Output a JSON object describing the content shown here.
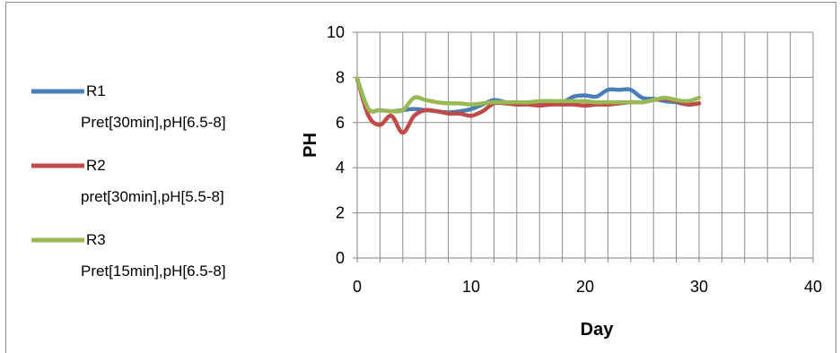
{
  "chart_data": {
    "type": "line",
    "xlabel": "Day",
    "ylabel": "PH",
    "xlim": [
      0,
      40
    ],
    "ylim": [
      0,
      10
    ],
    "xticks": [
      0,
      10,
      20,
      30,
      40
    ],
    "yticks": [
      0,
      2,
      4,
      6,
      8,
      10
    ],
    "x_minor_step": 2,
    "grid": true,
    "legend_position": "left",
    "series": [
      {
        "name": "R1 Pret[30min],pH[6.5-8]",
        "legend_lines": [
          "R1",
          "Pret[30min],pH[6.5-8]"
        ],
        "color": "#4a7ebb",
        "x": [
          0,
          1,
          2,
          3,
          4,
          5,
          6,
          7,
          8,
          9,
          10,
          11,
          12,
          13,
          14,
          15,
          16,
          17,
          18,
          19,
          20,
          21,
          22,
          23,
          24,
          25,
          26,
          27,
          28,
          29,
          30
        ],
        "y": [
          7.9,
          6.6,
          6.55,
          6.5,
          6.55,
          6.6,
          6.55,
          6.5,
          6.45,
          6.5,
          6.6,
          6.8,
          7.0,
          6.9,
          6.85,
          6.85,
          6.9,
          6.95,
          6.9,
          7.15,
          7.2,
          7.15,
          7.45,
          7.45,
          7.45,
          7.1,
          7.05,
          6.95,
          6.9,
          6.8,
          6.85
        ]
      },
      {
        "name": "R2 pret[30min],pH[5.5-8]",
        "legend_lines": [
          "R2",
          "pret[30min],pH[5.5-8]"
        ],
        "color": "#be4b48",
        "x": [
          0,
          1,
          2,
          3,
          4,
          5,
          6,
          7,
          8,
          9,
          10,
          11,
          12,
          13,
          14,
          15,
          16,
          17,
          18,
          19,
          20,
          21,
          22,
          23,
          24,
          25,
          26,
          27,
          28,
          29,
          30
        ],
        "y": [
          7.95,
          6.3,
          5.9,
          6.3,
          5.55,
          6.3,
          6.55,
          6.5,
          6.4,
          6.4,
          6.3,
          6.5,
          6.85,
          6.85,
          6.8,
          6.8,
          6.75,
          6.8,
          6.8,
          6.8,
          6.75,
          6.8,
          6.8,
          6.85,
          6.9,
          6.9,
          7.0,
          7.05,
          6.95,
          6.8,
          6.85
        ]
      },
      {
        "name": "R3 Pret[15min],pH[6.5-8]",
        "legend_lines": [
          "R3",
          "Pret[15min],pH[6.5-8]"
        ],
        "color": "#98b954",
        "x": [
          0,
          1,
          2,
          3,
          4,
          5,
          6,
          7,
          8,
          9,
          10,
          11,
          12,
          13,
          14,
          15,
          16,
          17,
          18,
          19,
          20,
          21,
          22,
          23,
          24,
          25,
          26,
          27,
          28,
          29,
          30
        ],
        "y": [
          7.95,
          6.6,
          6.55,
          6.5,
          6.55,
          7.1,
          7.0,
          6.9,
          6.85,
          6.85,
          6.8,
          6.85,
          6.9,
          6.9,
          6.9,
          6.9,
          6.95,
          6.95,
          6.95,
          6.95,
          6.95,
          6.9,
          6.9,
          6.9,
          6.9,
          6.9,
          7.0,
          7.1,
          7.0,
          6.95,
          7.1
        ]
      }
    ]
  }
}
